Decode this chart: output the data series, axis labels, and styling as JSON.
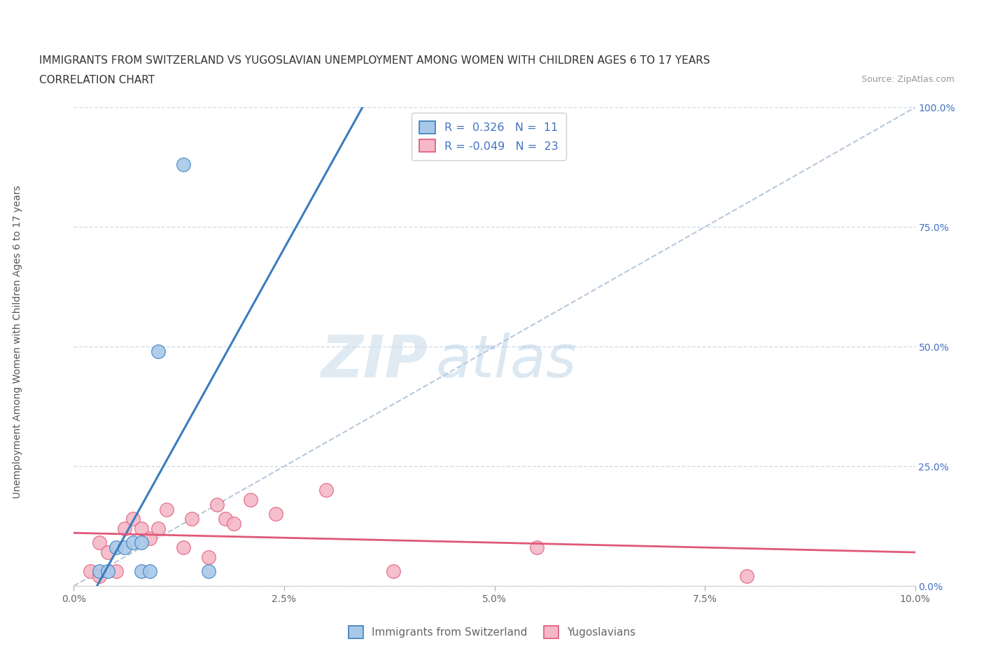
{
  "title_line1": "IMMIGRANTS FROM SWITZERLAND VS YUGOSLAVIAN UNEMPLOYMENT AMONG WOMEN WITH CHILDREN AGES 6 TO 17 YEARS",
  "title_line2": "CORRELATION CHART",
  "source_text": "Source: ZipAtlas.com",
  "ylabel": "Unemployment Among Women with Children Ages 6 to 17 years",
  "xlim": [
    0.0,
    0.1
  ],
  "ylim": [
    0.0,
    1.0
  ],
  "xtick_labels": [
    "0.0%",
    "2.5%",
    "5.0%",
    "7.5%",
    "10.0%"
  ],
  "xtick_vals": [
    0.0,
    0.025,
    0.05,
    0.075,
    0.1
  ],
  "ytick_vals": [
    0.0,
    0.25,
    0.5,
    0.75,
    1.0
  ],
  "right_ytick_labels": [
    "0.0%",
    "25.0%",
    "50.0%",
    "75.0%",
    "100.0%"
  ],
  "swiss_color": "#a8c8e8",
  "swiss_line_color": "#3a7dbe",
  "yugoslav_color": "#f4b8c8",
  "yugoslav_line_color": "#e05878",
  "R_swiss": 0.326,
  "N_swiss": 11,
  "R_yugoslav": -0.049,
  "N_yugoslav": 23,
  "swiss_points_x": [
    0.003,
    0.004,
    0.005,
    0.006,
    0.007,
    0.008,
    0.008,
    0.009,
    0.01,
    0.013,
    0.016
  ],
  "swiss_points_y": [
    0.03,
    0.03,
    0.08,
    0.08,
    0.09,
    0.09,
    0.03,
    0.03,
    0.49,
    0.88,
    0.03
  ],
  "yugoslav_points_x": [
    0.002,
    0.003,
    0.003,
    0.004,
    0.005,
    0.006,
    0.007,
    0.008,
    0.009,
    0.01,
    0.011,
    0.013,
    0.014,
    0.016,
    0.017,
    0.018,
    0.019,
    0.021,
    0.024,
    0.03,
    0.038,
    0.055,
    0.08
  ],
  "yugoslav_points_y": [
    0.03,
    0.02,
    0.09,
    0.07,
    0.03,
    0.12,
    0.14,
    0.12,
    0.1,
    0.12,
    0.16,
    0.08,
    0.14,
    0.06,
    0.17,
    0.14,
    0.13,
    0.18,
    0.15,
    0.2,
    0.03,
    0.08,
    0.02
  ],
  "background_color": "#ffffff",
  "grid_color": "#d0dcea",
  "marker_size": 200
}
